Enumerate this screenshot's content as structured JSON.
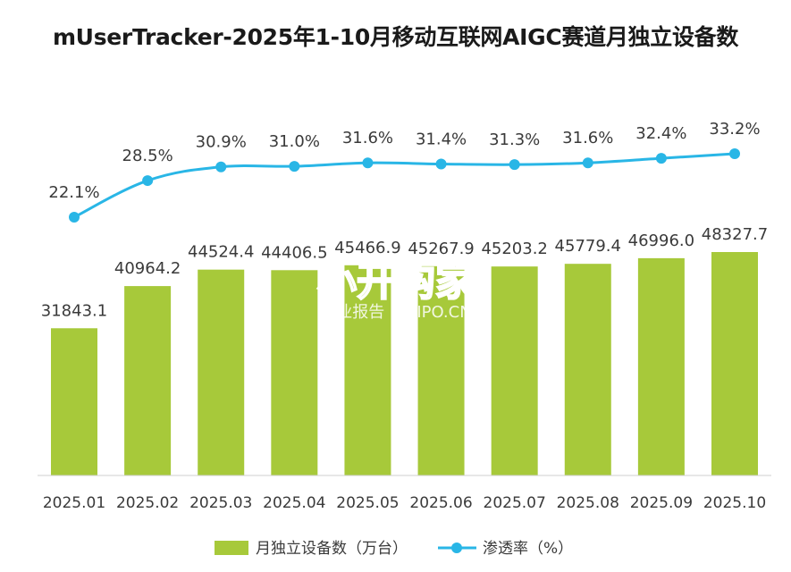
{
  "chart_data": {
    "type": "bar",
    "title": "mUserTracker-2025年1-10月移动互联网AIGC赛道月独立设备数",
    "categories": [
      "2025.01",
      "2025.02",
      "2025.03",
      "2025.04",
      "2025.05",
      "2025.06",
      "2025.07",
      "2025.08",
      "2025.09",
      "2025.10"
    ],
    "series": [
      {
        "name": "月独立设备数（万台）",
        "type": "bar",
        "color": "#a7c93a",
        "values": [
          31843.1,
          40964.2,
          44524.4,
          44406.5,
          45466.9,
          45267.9,
          45203.2,
          45779.4,
          46996.0,
          48327.7
        ],
        "labels": [
          "31843.1",
          "40964.2",
          "44524.4",
          "44406.5",
          "45466.9",
          "45267.9",
          "45203.2",
          "45779.4",
          "46996.0",
          "48327.7"
        ]
      },
      {
        "name": "渗透率（%）",
        "type": "line",
        "color": "#29b6e6",
        "values": [
          22.1,
          28.5,
          30.9,
          31.0,
          31.6,
          31.4,
          31.3,
          31.6,
          32.4,
          33.2
        ],
        "labels": [
          "22.1%",
          "28.5%",
          "30.9%",
          "31.0%",
          "31.6%",
          "31.4%",
          "31.3%",
          "31.6%",
          "32.4%",
          "33.2%"
        ]
      }
    ],
    "legend_position": "bottom",
    "grid": false
  },
  "watermark": {
    "main": "小开购家",
    "sub": "行业报告 IPOIPO.CN"
  }
}
